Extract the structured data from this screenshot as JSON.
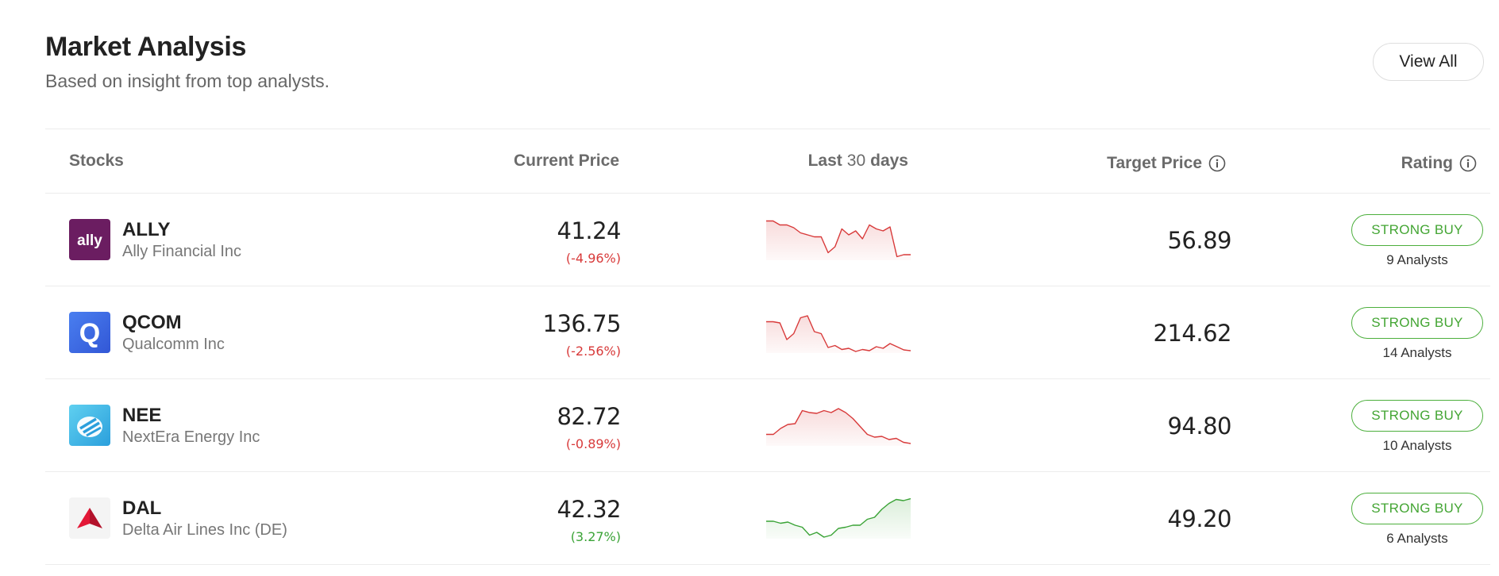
{
  "header": {
    "title": "Market Analysis",
    "subtitle": "Based on insight from top analysts.",
    "view_all_label": "View All"
  },
  "columns": {
    "stocks": "Stocks",
    "current_price": "Current Price",
    "last_prefix": "Last",
    "last_num": "30",
    "last_suffix": "days",
    "target_price": "Target Price",
    "rating": "Rating"
  },
  "colors": {
    "negative": "#d83a3a",
    "positive": "#3aa336",
    "strong_buy": "#43a533"
  },
  "stocks": [
    {
      "ticker": "ALLY",
      "name": "Ally Financial Inc",
      "logo_icon": "ally-logo-icon",
      "price": "41.24",
      "change": "(-4.96%)",
      "trend": "negative",
      "spark": [
        0.95,
        0.95,
        0.85,
        0.85,
        0.78,
        0.65,
        0.6,
        0.55,
        0.55,
        0.15,
        0.3,
        0.75,
        0.6,
        0.7,
        0.5,
        0.85,
        0.75,
        0.7,
        0.8,
        0.05,
        0.1,
        0.1
      ],
      "target": "56.89",
      "rating": "STRONG BUY",
      "analysts": "9 Analysts"
    },
    {
      "ticker": "QCOM",
      "name": "Qualcomm Inc",
      "logo_icon": "qualcomm-logo-icon",
      "price": "136.75",
      "change": "(-2.56%)",
      "trend": "negative",
      "spark": [
        0.75,
        0.75,
        0.72,
        0.3,
        0.45,
        0.85,
        0.9,
        0.5,
        0.45,
        0.1,
        0.15,
        0.05,
        0.08,
        0.0,
        0.05,
        0.02,
        0.12,
        0.08,
        0.2,
        0.12,
        0.04,
        0.02
      ],
      "target": "214.62",
      "rating": "STRONG BUY",
      "analysts": "14 Analysts"
    },
    {
      "ticker": "NEE",
      "name": "NextEra Energy Inc",
      "logo_icon": "nextera-logo-icon",
      "price": "82.72",
      "change": "(-0.89%)",
      "trend": "negative",
      "spark": [
        0.25,
        0.25,
        0.4,
        0.5,
        0.52,
        0.85,
        0.8,
        0.78,
        0.85,
        0.8,
        0.9,
        0.8,
        0.65,
        0.45,
        0.25,
        0.18,
        0.2,
        0.12,
        0.15,
        0.05,
        0.02
      ],
      "target": "94.80",
      "rating": "STRONG BUY",
      "analysts": "10 Analysts"
    },
    {
      "ticker": "DAL",
      "name": "Delta Air Lines Inc (DE)",
      "logo_icon": "delta-logo-icon",
      "price": "42.32",
      "change": "(3.27%)",
      "trend": "positive",
      "spark": [
        0.4,
        0.4,
        0.35,
        0.38,
        0.3,
        0.25,
        0.05,
        0.12,
        0.0,
        0.05,
        0.22,
        0.25,
        0.3,
        0.3,
        0.45,
        0.5,
        0.7,
        0.85,
        0.95,
        0.92,
        0.97
      ],
      "target": "49.20",
      "rating": "STRONG BUY",
      "analysts": "6 Analysts"
    }
  ]
}
